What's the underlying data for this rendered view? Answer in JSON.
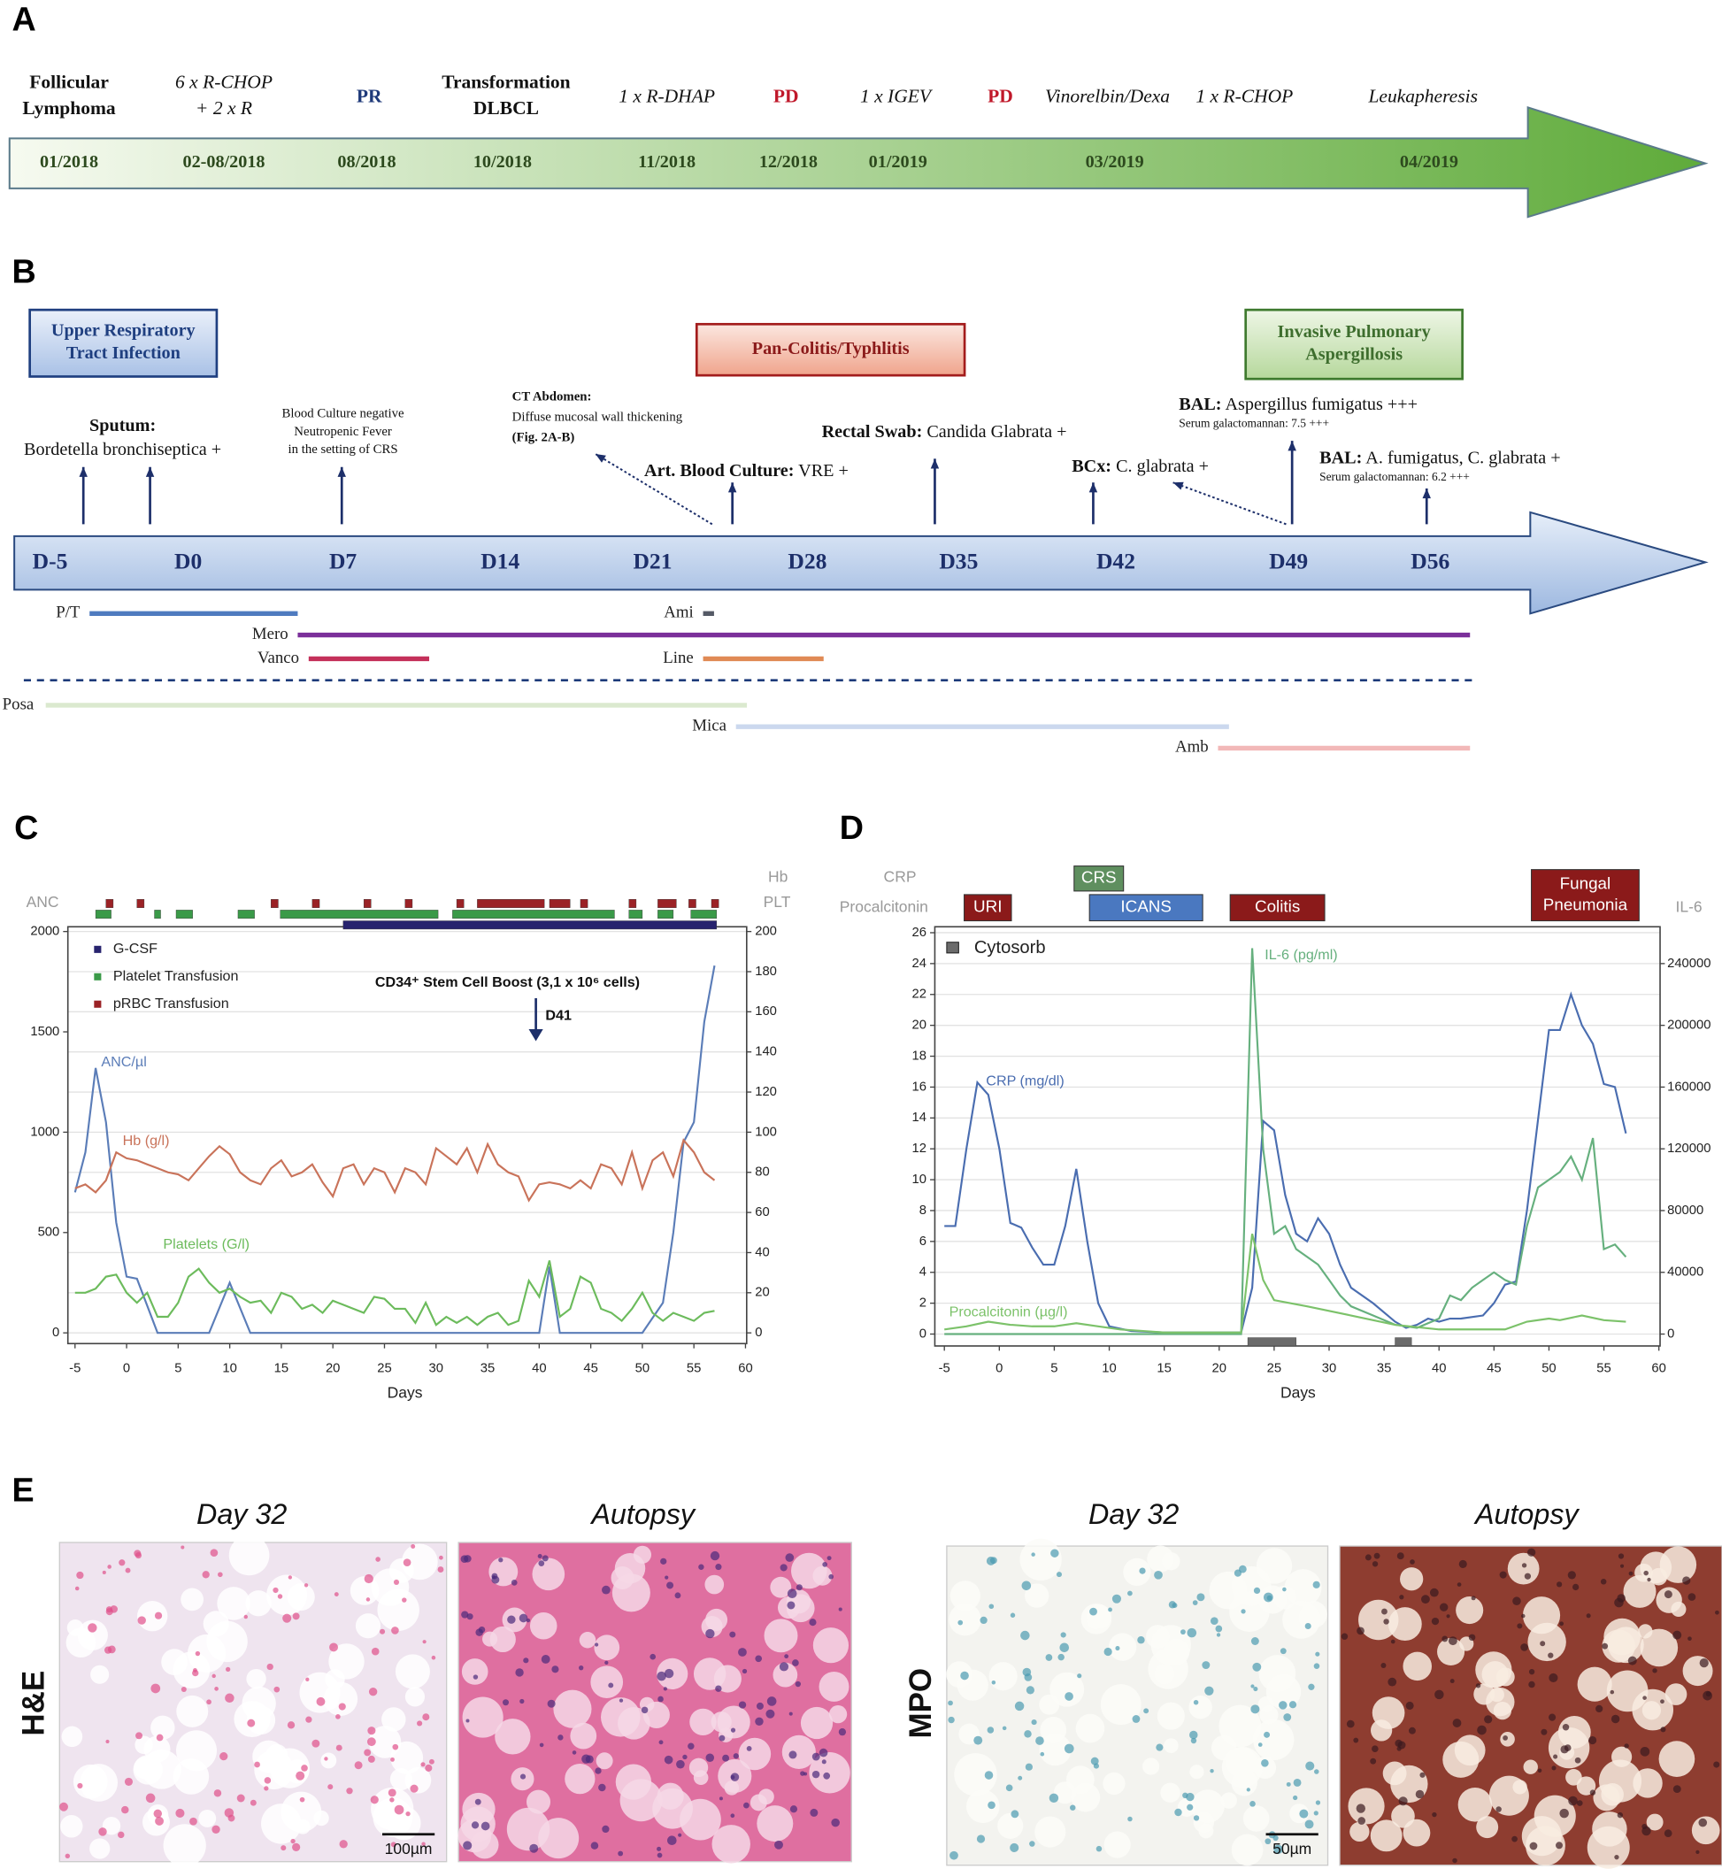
{
  "panel_labels": [
    "A",
    "B",
    "C",
    "D",
    "E"
  ],
  "timeline_a": {
    "events": [
      {
        "lines": [
          "Follicular",
          "Lymphoma"
        ],
        "style": "bold"
      },
      {
        "lines": [
          "6 x R-CHOP",
          "+ 2 x R"
        ],
        "style": "italic"
      },
      {
        "lines": [
          "PR"
        ],
        "style": "bold-blue"
      },
      {
        "lines": [
          "Transformation",
          "DLBCL"
        ],
        "style": "bold"
      },
      {
        "lines": [
          "1 x R-DHAP"
        ],
        "style": "italic"
      },
      {
        "lines": [
          "PD"
        ],
        "style": "bold-red"
      },
      {
        "lines": [
          "1 x IGEV"
        ],
        "style": "italic"
      },
      {
        "lines": [
          "PD"
        ],
        "style": "bold-red"
      },
      {
        "lines": [
          "Vinorelbin/Dexa"
        ],
        "style": "italic"
      },
      {
        "lines": [
          "1 x R-CHOP"
        ],
        "style": "italic"
      },
      {
        "lines": [
          "Leukapheresis"
        ],
        "style": "italic"
      }
    ],
    "dates": [
      "01/2018",
      "02-08/2018",
      "08/2018",
      "10/2018",
      "11/2018",
      "12/2018",
      "01/2019",
      "03/2019",
      "04/2019"
    ]
  },
  "timeline_b": {
    "boxes": [
      {
        "lines": [
          "Upper Respiratory",
          "Tract Infection"
        ],
        "style": "blue"
      },
      {
        "lines": [
          "Pan-Colitis/Typhlitis"
        ],
        "style": "red"
      },
      {
        "lines": [
          "Invasive Pulmonary",
          "Aspergillosis"
        ],
        "style": "green"
      }
    ],
    "annotations": [
      {
        "small": false,
        "lines": [
          {
            "bold": "Sputum:"
          },
          {
            "text": "Bordetella bronchiseptica +"
          }
        ]
      },
      {
        "small": true,
        "lines": [
          {
            "text": "Blood Culture negative"
          },
          {
            "text": "Neutropenic Fever"
          },
          {
            "text": "in the setting of CRS"
          }
        ]
      },
      {
        "small": true,
        "lines": [
          {
            "bold": "CT Abdomen:"
          },
          {
            "text": "Diffuse mucosal wall thickening"
          },
          {
            "bold": "(Fig. 2A-B)"
          }
        ]
      },
      {
        "small": false,
        "lines": [
          {
            "bold": "Art. Blood Culture:",
            "text": " VRE +"
          }
        ]
      },
      {
        "small": false,
        "lines": [
          {
            "bold": "Rectal Swab:",
            "text": " Candida Glabrata +"
          }
        ]
      },
      {
        "small": false,
        "lines": [
          {
            "bold": "BCx:",
            "text": " C. glabrata +"
          }
        ]
      },
      {
        "small": false,
        "lines": [
          {
            "bold": "BAL:",
            "text": " Aspergillus fumigatus +++"
          },
          {
            "note": "Serum galactomannan: 7.5 +++"
          }
        ]
      },
      {
        "small": false,
        "lines": [
          {
            "bold": "BAL:",
            "text": " A. fumigatus, C. glabrata +"
          },
          {
            "note": "Serum galactomannan: 6.2 +++"
          }
        ]
      }
    ],
    "days": [
      "D-5",
      "D0",
      "D7",
      "D14",
      "D21",
      "D28",
      "D35",
      "D42",
      "D49",
      "D56"
    ],
    "drugs": [
      {
        "name": "P/T",
        "color": "#4f7bbf",
        "start": -4.5,
        "end": 5
      },
      {
        "name": "Mero",
        "color": "#7b2f9a",
        "start": 5,
        "end": 58.5
      },
      {
        "name": "Vanco",
        "color": "#c4305a",
        "start": 5.5,
        "end": 11
      },
      {
        "name": "Ami",
        "color": "#555a66",
        "start": 23.5,
        "end": 24
      },
      {
        "name": "Line",
        "color": "#e08a55",
        "start": 23.5,
        "end": 29
      },
      {
        "name": "Posa",
        "color": "#dbe9cf",
        "start": -6.5,
        "end": 25.5
      },
      {
        "name": "Mica",
        "color": "#cbd8ee",
        "start": 25,
        "end": 47.5
      },
      {
        "name": "Amb",
        "color": "#f2b8b8",
        "start": 47,
        "end": 58.5
      }
    ]
  },
  "chart_data": [
    {
      "type": "line",
      "xlabel": "Days",
      "xlim": [
        -5,
        60
      ],
      "xticks": [
        -5,
        0,
        5,
        10,
        15,
        20,
        25,
        30,
        35,
        40,
        45,
        50,
        55,
        60
      ],
      "ylim": [
        0,
        2000
      ],
      "yticks": [
        0,
        500,
        1000,
        1500,
        2000
      ],
      "y2lim": [
        0,
        200
      ],
      "y2ticks": [
        0,
        20,
        40,
        60,
        80,
        100,
        120,
        140,
        160,
        180,
        200
      ],
      "grid": "y2",
      "ylabel": [
        "ANC"
      ],
      "y2label": [
        "Hb",
        "PLT"
      ],
      "series": [
        {
          "name": "ANC/µl",
          "color": "#5b7db8",
          "x": [
            -5,
            -4,
            -3,
            -2,
            -1,
            0,
            1,
            3,
            8,
            10,
            12,
            40,
            41,
            42,
            50,
            52,
            53,
            54,
            55,
            56,
            57
          ],
          "values": [
            700,
            900,
            1320,
            1050,
            550,
            280,
            270,
            0,
            0,
            250,
            0,
            0,
            330,
            0,
            0,
            150,
            500,
            950,
            1050,
            1550,
            1830
          ]
        },
        {
          "name": "Hb (g/l)",
          "color": "#c9735a",
          "axis": "y2",
          "x": [
            -5,
            -4,
            -3,
            -2,
            -1,
            0,
            1,
            2,
            3,
            4,
            5,
            6,
            7,
            8,
            9,
            10,
            11,
            12,
            13,
            14,
            15,
            16,
            17,
            18,
            19,
            20,
            21,
            22,
            23,
            24,
            25,
            26,
            27,
            28,
            29,
            30,
            31,
            32,
            33,
            34,
            35,
            36,
            37,
            38,
            39,
            40,
            41,
            42,
            43,
            44,
            45,
            46,
            47,
            48,
            49,
            50,
            51,
            52,
            53,
            54,
            55,
            56,
            57
          ],
          "values": [
            72,
            74,
            70,
            76,
            90,
            87,
            86,
            84,
            82,
            80,
            79,
            76,
            82,
            88,
            93,
            89,
            80,
            76,
            74,
            82,
            86,
            78,
            80,
            84,
            75,
            68,
            82,
            84,
            74,
            82,
            80,
            70,
            82,
            80,
            74,
            92,
            88,
            84,
            92,
            80,
            94,
            84,
            80,
            78,
            66,
            74,
            75,
            74,
            72,
            76,
            72,
            84,
            82,
            74,
            90,
            72,
            86,
            90,
            78,
            96,
            90,
            80,
            76
          ]
        },
        {
          "name": "Platelets (G/l)",
          "color": "#6cbb5c",
          "axis": "y2",
          "x": [
            -5,
            -4,
            -3,
            -2,
            -1,
            0,
            1,
            2,
            3,
            4,
            5,
            6,
            7,
            8,
            9,
            10,
            11,
            12,
            13,
            14,
            15,
            16,
            17,
            18,
            19,
            20,
            21,
            22,
            23,
            24,
            25,
            26,
            27,
            28,
            29,
            30,
            31,
            32,
            33,
            34,
            35,
            36,
            37,
            38,
            39,
            40,
            41,
            42,
            43,
            44,
            45,
            46,
            47,
            48,
            49,
            50,
            51,
            52,
            53,
            54,
            55,
            56,
            57
          ],
          "values": [
            20,
            20,
            22,
            28,
            29,
            20,
            15,
            20,
            8,
            8,
            15,
            28,
            32,
            25,
            20,
            22,
            18,
            15,
            16,
            10,
            20,
            18,
            12,
            14,
            10,
            16,
            14,
            12,
            10,
            18,
            17,
            12,
            12,
            5,
            15,
            4,
            8,
            5,
            8,
            4,
            8,
            10,
            4,
            6,
            26,
            18,
            36,
            8,
            12,
            28,
            25,
            12,
            10,
            6,
            12,
            20,
            10,
            6,
            10,
            8,
            6,
            10,
            11
          ]
        }
      ],
      "tracks": [
        {
          "name": "pRBC Transfusion",
          "color": "#9b2226",
          "intervals": [
            [
              -2,
              -1.3
            ],
            [
              1,
              1.7
            ],
            [
              14,
              14.7
            ],
            [
              18,
              18.7
            ],
            [
              23,
              23.7
            ],
            [
              27,
              27.7
            ],
            [
              32,
              32.7
            ],
            [
              34,
              40.5
            ],
            [
              41,
              43
            ],
            [
              44,
              44.7
            ],
            [
              48.7,
              49.4
            ],
            [
              51.5,
              53.3
            ],
            [
              54.5,
              55.2
            ],
            [
              56.7,
              57.4
            ]
          ]
        },
        {
          "name": "Platelet Transfusion",
          "color": "#3a9a48",
          "intervals": [
            [
              -3,
              -1.5
            ],
            [
              2.7,
              3.3
            ],
            [
              4.8,
              6.4
            ],
            [
              10.8,
              12.4
            ],
            [
              14.9,
              30.2
            ],
            [
              31.6,
              47.3
            ],
            [
              48.7,
              50
            ],
            [
              51.5,
              53
            ],
            [
              54.7,
              57.2
            ]
          ]
        },
        {
          "name": "G-CSF",
          "color": "#27236e",
          "intervals": [
            [
              21,
              57.2
            ]
          ]
        }
      ],
      "annotation": "CD34⁺ Stem Cell Boost (3,1 x 10⁶ cells)",
      "annotation_day": "D41"
    },
    {
      "type": "line",
      "xlabel": "Days",
      "xlim": [
        -5,
        60
      ],
      "xticks": [
        -5,
        0,
        5,
        10,
        15,
        20,
        25,
        30,
        35,
        40,
        45,
        50,
        55,
        60
      ],
      "ylim": [
        0,
        26
      ],
      "yticks": [
        0,
        2,
        4,
        6,
        8,
        10,
        12,
        14,
        16,
        18,
        20,
        22,
        24,
        26
      ],
      "y2lim": [
        0,
        260000
      ],
      "y2ticks": [
        0,
        40000,
        80000,
        120000,
        160000,
        200000,
        240000
      ],
      "grid": "y",
      "ylabel": [
        "CRP",
        "Procalcitonin"
      ],
      "y2label": [
        "IL-6"
      ],
      "series": [
        {
          "name": "CRP (mg/dl)",
          "color": "#4a6db0",
          "x": [
            -5,
            -4,
            -3,
            -2,
            -1,
            0,
            1,
            2,
            3,
            4,
            5,
            6,
            7,
            8,
            9,
            10,
            12,
            15,
            20,
            22,
            23,
            24,
            25,
            26,
            27,
            28,
            29,
            30,
            31,
            32,
            34,
            36,
            37,
            38,
            39,
            40,
            41,
            42,
            44,
            45,
            46,
            47,
            48,
            50,
            51,
            52,
            53,
            54,
            55,
            56,
            57
          ],
          "values": [
            7,
            7,
            12,
            16.3,
            15.5,
            12,
            7.2,
            6.9,
            5.6,
            4.5,
            4.5,
            7,
            10.7,
            6,
            2,
            0.5,
            0.2,
            0.1,
            0.1,
            0.1,
            3,
            13.8,
            13.2,
            9,
            6.5,
            6,
            7.5,
            6.5,
            4.5,
            3,
            2,
            0.8,
            0.4,
            0.6,
            1,
            0.8,
            1,
            1,
            1.2,
            2,
            3.2,
            3.4,
            8,
            19.7,
            19.7,
            22,
            20,
            18.8,
            16.2,
            16,
            13
          ]
        },
        {
          "name": "IL-6 (pg/ml)",
          "color": "#66b07e",
          "axis": "y2",
          "x": [
            -5,
            22,
            23,
            24,
            25,
            26,
            27,
            28,
            29,
            30,
            31,
            32,
            34,
            36,
            38,
            40,
            41,
            42,
            43,
            44,
            45,
            46,
            47,
            48,
            49,
            50,
            51,
            52,
            53,
            54,
            55,
            56,
            57
          ],
          "values": [
            0,
            0,
            250000,
            120000,
            65000,
            70000,
            55000,
            50000,
            45000,
            35000,
            25000,
            18000,
            12000,
            6000,
            4000,
            10000,
            25000,
            22000,
            30000,
            35000,
            40000,
            35000,
            32000,
            70000,
            95000,
            100000,
            105000,
            115000,
            100000,
            127000,
            55000,
            58000,
            50000
          ]
        },
        {
          "name": "Procalcitonin (µg/l)",
          "color": "#7cc26a",
          "x": [
            -5,
            -3,
            -1,
            1,
            3,
            5,
            7,
            9,
            11,
            15,
            20,
            22,
            23,
            24,
            25,
            28,
            32,
            36,
            40,
            46,
            48,
            50,
            51,
            53,
            55,
            57
          ],
          "values": [
            0.3,
            0.5,
            0.8,
            0.6,
            0.5,
            0.5,
            0.7,
            0.5,
            0.3,
            0.1,
            0.1,
            0.1,
            6.5,
            3.5,
            2.2,
            1.8,
            1.2,
            0.6,
            0.3,
            0.3,
            0.8,
            1,
            0.9,
            1.2,
            0.9,
            0.8
          ]
        }
      ],
      "events": [
        {
          "lines": [
            "URI"
          ],
          "color": "#8b1a1a",
          "start": -3.2,
          "end": 1.1
        },
        {
          "lines": [
            "CRS"
          ],
          "color": "#5f8f5f",
          "start": 6.8,
          "end": 11.3
        },
        {
          "lines": [
            "ICANS"
          ],
          "color": "#4a78c0",
          "start": 8.2,
          "end": 18.5
        },
        {
          "lines": [
            "Colitis"
          ],
          "color": "#8b1a1a",
          "start": 21,
          "end": 29.6
        },
        {
          "lines": [
            "Fungal",
            "Pneumonia"
          ],
          "color": "#8b1a1a",
          "start": 48.4,
          "end": 58.2
        }
      ],
      "tracks": [
        {
          "name": "Cytosorb",
          "color": "#6b6b6b",
          "intervals": [
            [
              22.6,
              27
            ],
            [
              36,
              37.5
            ]
          ]
        }
      ]
    }
  ],
  "histology": {
    "titles": [
      "Day 32",
      "Autopsy",
      "Day 32",
      "Autopsy"
    ],
    "rows": [
      "H&E",
      "MPO"
    ],
    "scale_bars": [
      "100µm",
      "50µm"
    ]
  }
}
